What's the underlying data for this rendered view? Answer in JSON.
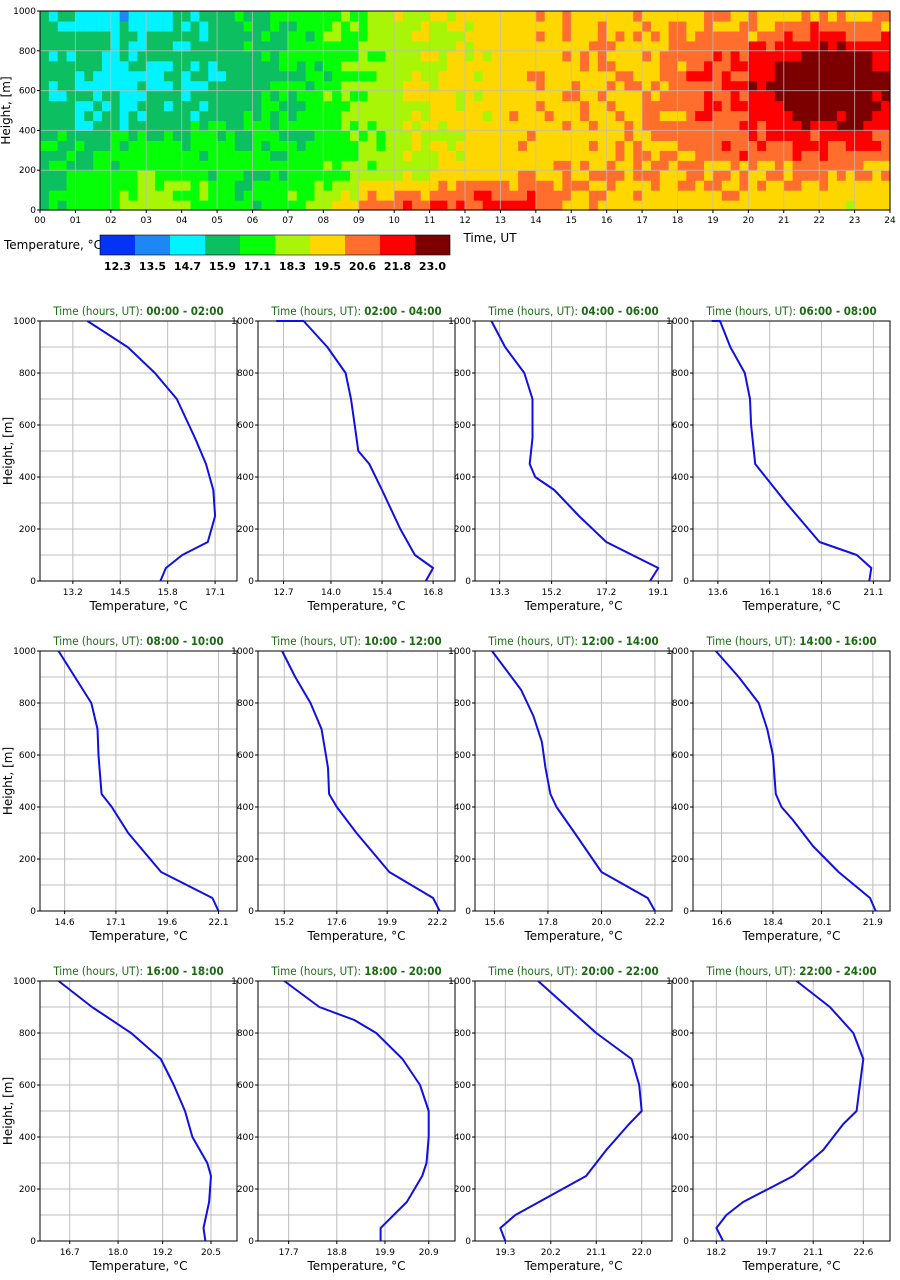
{
  "colors": {
    "levels": [
      "#0433f7",
      "#1e87f6",
      "#00f3ff",
      "#0cc062",
      "#04ff06",
      "#a9f507",
      "#fed700",
      "#ff6e2d",
      "#ff0000",
      "#7c0000"
    ],
    "profile_line": "#1010e0",
    "title_text": "#1a6b12"
  },
  "chart_data": [
    {
      "type": "heatmap",
      "xlabel": "Time, UT",
      "ylabel": "Height, [m]",
      "xlim": [
        0,
        24
      ],
      "ylim": [
        0,
        1000
      ],
      "x_tick_labels": [
        "00",
        "01",
        "02",
        "03",
        "04",
        "05",
        "06",
        "07",
        "08",
        "09",
        "10",
        "11",
        "12",
        "13",
        "14",
        "15",
        "16",
        "17",
        "18",
        "19",
        "20",
        "21",
        "22",
        "23",
        "24"
      ],
      "y_tick_labels": [
        "0",
        "200",
        "400",
        "600",
        "800",
        "1000"
      ],
      "grid": true,
      "colorbar": {
        "label": "Temperature, °C",
        "tick_labels": [
          "12.3",
          "13.5",
          "14.7",
          "15.9",
          "17.1",
          "18.3",
          "19.5",
          "20.6",
          "21.8",
          "23.0"
        ]
      }
    },
    {
      "type": "line",
      "title_prefix": "Time (hours, UT):",
      "title_range": "00:00 - 02:00",
      "xlabel": "Temperature, °C",
      "ylabel": "Height, [m]",
      "xlim": [
        12.3,
        17.7
      ],
      "ylim": [
        0,
        1000
      ],
      "xticks": [
        13.2,
        14.5,
        15.8,
        17.1
      ],
      "x_tick_labels": [
        "13.2",
        "14.5",
        "15.8",
        "17.1"
      ],
      "y_tick_labels": [
        "0",
        "200",
        "400",
        "600",
        "800",
        "1000"
      ],
      "x": [
        15.6,
        15.75,
        16.2,
        16.9,
        17.1,
        17.05,
        16.85,
        16.55,
        16.05,
        15.45,
        14.7,
        13.6
      ],
      "y": [
        0,
        50,
        100,
        150,
        250,
        350,
        450,
        550,
        700,
        800,
        900,
        1000
      ]
    },
    {
      "type": "line",
      "title_prefix": "Time (hours, UT):",
      "title_range": "02:00 - 04:00",
      "xlabel": "Temperature, °C",
      "ylabel": "",
      "xlim": [
        12.0,
        17.4
      ],
      "ylim": [
        0,
        1000
      ],
      "xticks": [
        12.7,
        14.0,
        15.4,
        16.8
      ],
      "x_tick_labels": [
        "12.7",
        "14.0",
        "15.4",
        "16.8"
      ],
      "y_tick_labels": [
        "0",
        "200",
        "400",
        "600",
        "800",
        "1000"
      ],
      "x": [
        16.6,
        16.8,
        16.3,
        15.9,
        15.4,
        15.05,
        14.75,
        14.65,
        14.55,
        14.4,
        13.9,
        13.25,
        12.5
      ],
      "y": [
        0,
        50,
        100,
        200,
        350,
        450,
        500,
        600,
        700,
        800,
        900,
        1000,
        1000
      ]
    },
    {
      "type": "line",
      "title_prefix": "Time (hours, UT):",
      "title_range": "04:00 - 06:00",
      "xlabel": "Temperature, °C",
      "ylabel": "",
      "xlim": [
        12.4,
        19.6
      ],
      "ylim": [
        0,
        1000
      ],
      "xticks": [
        13.3,
        15.2,
        17.2,
        19.1
      ],
      "x_tick_labels": [
        "13.3",
        "15.2",
        "17.2",
        "19.1"
      ],
      "y_tick_labels": [
        "0",
        "200",
        "400",
        "600",
        "800",
        "1000"
      ],
      "x": [
        18.8,
        19.1,
        17.2,
        16.2,
        15.3,
        14.6,
        14.4,
        14.5,
        14.5,
        14.2,
        13.5,
        13.0
      ],
      "y": [
        0,
        50,
        150,
        250,
        350,
        400,
        450,
        550,
        700,
        800,
        900,
        1000
      ]
    },
    {
      "type": "line",
      "title_prefix": "Time (hours, UT):",
      "title_range": "06:00 - 08:00",
      "xlabel": "Temperature, °C",
      "ylabel": "",
      "xlim": [
        12.4,
        21.9
      ],
      "ylim": [
        0,
        1000
      ],
      "xticks": [
        13.6,
        16.1,
        18.6,
        21.1
      ],
      "x_tick_labels": [
        "13.6",
        "16.1",
        "18.6",
        "21.1"
      ],
      "y_tick_labels": [
        "0",
        "200",
        "400",
        "600",
        "800",
        "1000"
      ],
      "x": [
        20.9,
        21.0,
        20.3,
        18.5,
        16.9,
        15.9,
        15.4,
        15.2,
        15.15,
        14.9,
        14.2,
        13.7,
        13.3
      ],
      "y": [
        0,
        50,
        100,
        150,
        300,
        400,
        450,
        600,
        700,
        800,
        900,
        1000,
        1000
      ]
    },
    {
      "type": "line",
      "title_prefix": "Time (hours, UT):",
      "title_range": "08:00 - 10:00",
      "xlabel": "Temperature, °C",
      "ylabel": "Height, [m]",
      "xlim": [
        13.4,
        23.0
      ],
      "ylim": [
        0,
        1000
      ],
      "xticks": [
        14.6,
        17.1,
        19.6,
        22.1
      ],
      "x_tick_labels": [
        "14.6",
        "17.1",
        "19.6",
        "22.1"
      ],
      "y_tick_labels": [
        "0",
        "200",
        "400",
        "600",
        "800",
        "1000"
      ],
      "x": [
        22.1,
        21.8,
        19.3,
        17.7,
        16.9,
        16.4,
        16.3,
        16.25,
        16.2,
        15.9,
        15.1,
        14.3
      ],
      "y": [
        0,
        50,
        150,
        300,
        400,
        450,
        550,
        600,
        700,
        800,
        900,
        1000
      ]
    },
    {
      "type": "line",
      "title_prefix": "Time (hours, UT):",
      "title_range": "10:00 - 12:00",
      "xlabel": "Temperature, °C",
      "ylabel": "",
      "xlim": [
        14.0,
        23.0
      ],
      "ylim": [
        0,
        1000
      ],
      "xticks": [
        15.2,
        17.6,
        19.9,
        22.2
      ],
      "x_tick_labels": [
        "15.2",
        "17.6",
        "19.9",
        "22.2"
      ],
      "y_tick_labels": [
        "0",
        "200",
        "400",
        "600",
        "800",
        "1000"
      ],
      "x": [
        22.3,
        22.0,
        20.0,
        18.5,
        17.6,
        17.25,
        17.2,
        17.1,
        16.9,
        16.4,
        15.7,
        15.1
      ],
      "y": [
        0,
        50,
        150,
        300,
        400,
        450,
        550,
        600,
        700,
        800,
        900,
        1000
      ]
    },
    {
      "type": "line",
      "title_prefix": "Time (hours, UT):",
      "title_range": "12:00 - 14:00",
      "xlabel": "Temperature, °C",
      "ylabel": "",
      "xlim": [
        14.8,
        22.9
      ],
      "ylim": [
        0,
        1000
      ],
      "xticks": [
        15.6,
        17.8,
        20.0,
        22.2
      ],
      "x_tick_labels": [
        "15.6",
        "17.8",
        "20.0",
        "22.2"
      ],
      "y_tick_labels": [
        "0",
        "200",
        "400",
        "600",
        "800",
        "1000"
      ],
      "x": [
        22.2,
        21.9,
        20.0,
        18.9,
        18.15,
        17.9,
        17.7,
        17.55,
        17.2,
        16.7,
        15.5
      ],
      "y": [
        0,
        50,
        150,
        300,
        400,
        450,
        550,
        650,
        750,
        850,
        1000
      ]
    },
    {
      "type": "line",
      "title_prefix": "Time (hours, UT):",
      "title_range": "14:00 - 16:00",
      "xlabel": "Temperature, °C",
      "ylabel": "",
      "xlim": [
        15.6,
        22.5
      ],
      "ylim": [
        0,
        1000
      ],
      "xticks": [
        16.6,
        18.4,
        20.1,
        21.9
      ],
      "x_tick_labels": [
        "16.6",
        "18.4",
        "20.1",
        "21.9"
      ],
      "y_tick_labels": [
        "0",
        "200",
        "400",
        "600",
        "800",
        "1000"
      ],
      "x": [
        22.0,
        21.8,
        20.7,
        19.8,
        19.1,
        18.7,
        18.5,
        18.4,
        18.2,
        17.9,
        17.2,
        16.4
      ],
      "y": [
        0,
        50,
        150,
        250,
        350,
        400,
        450,
        600,
        700,
        800,
        900,
        1000
      ]
    },
    {
      "type": "line",
      "title_prefix": "Time (hours, UT):",
      "title_range": "16:00 - 18:00",
      "xlabel": "Temperature, °C",
      "ylabel": "Height, [m]",
      "xlim": [
        15.9,
        21.2
      ],
      "ylim": [
        0,
        1000
      ],
      "xticks": [
        16.7,
        18.0,
        19.2,
        20.5
      ],
      "x_tick_labels": [
        "16.7",
        "18.0",
        "19.2",
        "20.5"
      ],
      "y_tick_labels": [
        "0",
        "200",
        "400",
        "600",
        "800",
        "1000"
      ],
      "x": [
        20.35,
        20.3,
        20.45,
        20.5,
        20.4,
        20.0,
        19.8,
        19.5,
        19.15,
        18.35,
        17.3,
        16.4
      ],
      "y": [
        0,
        50,
        150,
        250,
        300,
        400,
        500,
        600,
        700,
        800,
        900,
        1000
      ]
    },
    {
      "type": "line",
      "title_prefix": "Time (hours, UT):",
      "title_range": "18:00 - 20:00",
      "xlabel": "Temperature, °C",
      "ylabel": "",
      "xlim": [
        17.0,
        21.5
      ],
      "ylim": [
        0,
        1000
      ],
      "xticks": [
        17.7,
        18.8,
        19.9,
        20.9
      ],
      "x_tick_labels": [
        "17.7",
        "18.8",
        "19.9",
        "20.9"
      ],
      "y_tick_labels": [
        "0",
        "200",
        "400",
        "600",
        "800",
        "1000"
      ],
      "x": [
        19.8,
        19.8,
        20.4,
        20.75,
        20.85,
        20.9,
        20.9,
        20.7,
        20.3,
        19.7,
        19.2,
        18.4,
        17.6
      ],
      "y": [
        0,
        50,
        150,
        250,
        300,
        400,
        500,
        600,
        700,
        800,
        850,
        900,
        1000
      ]
    },
    {
      "type": "line",
      "title_prefix": "Time (hours, UT):",
      "title_range": "20:00 - 22:00",
      "xlabel": "Temperature, °C",
      "ylabel": "",
      "xlim": [
        18.7,
        22.6
      ],
      "ylim": [
        0,
        1000
      ],
      "xticks": [
        19.3,
        20.2,
        21.1,
        22.0
      ],
      "x_tick_labels": [
        "19.3",
        "20.2",
        "21.1",
        "22.0"
      ],
      "y_tick_labels": [
        "0",
        "200",
        "400",
        "600",
        "800",
        "1000"
      ],
      "x": [
        19.3,
        19.2,
        19.5,
        20.9,
        21.3,
        21.75,
        22.0,
        21.95,
        21.8,
        21.1,
        19.95
      ],
      "y": [
        0,
        50,
        100,
        250,
        350,
        450,
        500,
        600,
        700,
        800,
        1000
      ]
    },
    {
      "type": "line",
      "title_prefix": "Time (hours, UT):",
      "title_range": "22:00 - 24:00",
      "xlabel": "Temperature, °C",
      "ylabel": "",
      "xlim": [
        17.5,
        23.4
      ],
      "ylim": [
        0,
        1000
      ],
      "xticks": [
        18.2,
        19.7,
        21.1,
        22.6
      ],
      "x_tick_labels": [
        "18.2",
        "19.7",
        "21.1",
        "22.6"
      ],
      "y_tick_labels": [
        "0",
        "200",
        "400",
        "600",
        "800",
        "1000"
      ],
      "x": [
        18.4,
        18.2,
        18.5,
        19.0,
        20.5,
        21.4,
        22.0,
        22.4,
        22.5,
        22.6,
        22.3,
        21.6,
        20.6
      ],
      "y": [
        0,
        50,
        100,
        150,
        250,
        350,
        450,
        500,
        600,
        700,
        800,
        900,
        1000
      ]
    }
  ]
}
